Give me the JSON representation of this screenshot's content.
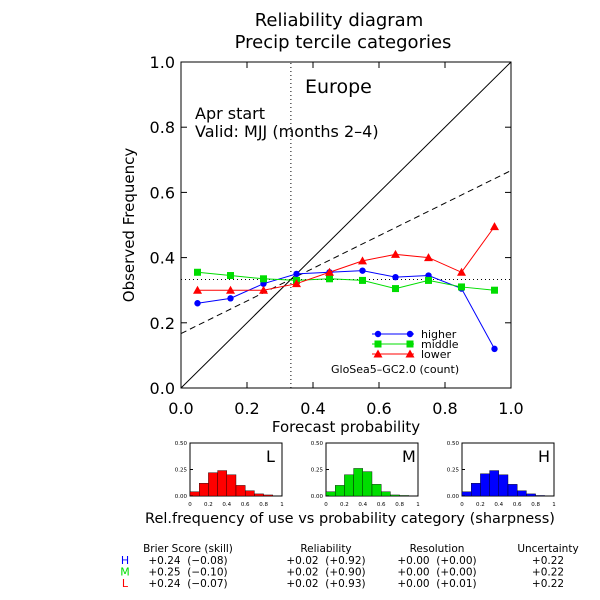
{
  "title": "Reliability diagram",
  "subtitle": "Precip tercile categories",
  "region": "Europe",
  "start": "Apr start",
  "valid": "Valid: MJJ (months 2–4)",
  "model": "GloSea5–GC2.0 (count)",
  "sharpness_caption": "Rel.frequency of use vs probability category (sharpness)",
  "colors": {
    "higher": "#0000ff",
    "middle": "#00dd00",
    "lower": "#ff0000"
  },
  "chart_data": {
    "type": "line",
    "xlabel": "Forecast probability",
    "ylabel": "Observed Frequency",
    "xlim": [
      0,
      1
    ],
    "ylim": [
      0,
      1
    ],
    "xticks": [
      "0.0",
      "0.2",
      "0.4",
      "0.6",
      "0.8",
      "1.0"
    ],
    "yticks": [
      "0.0",
      "0.2",
      "0.4",
      "0.6",
      "0.8",
      "1.0"
    ],
    "climatology": 0.333,
    "no_skill_line": {
      "x": [
        0,
        1
      ],
      "y": [
        0.167,
        0.667
      ]
    },
    "x": [
      0.05,
      0.15,
      0.25,
      0.35,
      0.45,
      0.55,
      0.65,
      0.75,
      0.85,
      0.95
    ],
    "series": [
      {
        "name": "higher",
        "marker": "circle",
        "values": [
          0.26,
          0.275,
          0.32,
          0.35,
          0.355,
          0.36,
          0.34,
          0.345,
          0.305,
          0.12
        ]
      },
      {
        "name": "middle",
        "marker": "square",
        "values": [
          0.355,
          0.345,
          0.335,
          0.33,
          0.335,
          0.33,
          0.305,
          0.33,
          0.31,
          0.3
        ]
      },
      {
        "name": "lower",
        "marker": "triangle",
        "values": [
          0.3,
          0.3,
          0.3,
          0.32,
          0.355,
          0.39,
          0.41,
          0.4,
          0.355,
          0.495
        ]
      }
    ],
    "legend_position": "bottom-right",
    "sharpness": [
      {
        "label": "L",
        "series": "lower",
        "values": [
          0.04,
          0.12,
          0.22,
          0.24,
          0.2,
          0.1,
          0.05,
          0.02,
          0.01,
          0.0
        ]
      },
      {
        "label": "M",
        "series": "middle",
        "values": [
          0.04,
          0.1,
          0.2,
          0.26,
          0.23,
          0.11,
          0.04,
          0.01,
          0.005,
          0.0
        ]
      },
      {
        "label": "H",
        "series": "higher",
        "values": [
          0.04,
          0.12,
          0.21,
          0.24,
          0.2,
          0.11,
          0.05,
          0.02,
          0.005,
          0.0
        ]
      }
    ],
    "sharpness_yticks": [
      "0.00",
      "0.25",
      "0.50"
    ],
    "sharpness_xticks": [
      "0",
      "0.2",
      "0.4",
      "0.6",
      "0.8",
      "1"
    ]
  },
  "scores": {
    "headers": [
      "Brier Score (skill)",
      "Reliability",
      "Resolution",
      "Uncertainty"
    ],
    "rows": [
      {
        "label": "H",
        "series": "higher",
        "cells": [
          "+0.24  (−0.08)",
          "+0.02  (+0.92)",
          "+0.00  (+0.00)",
          "+0.22"
        ]
      },
      {
        "label": "M",
        "series": "middle",
        "cells": [
          "+0.25  (−0.10)",
          "+0.02  (+0.90)",
          "+0.00  (+0.00)",
          "+0.22"
        ]
      },
      {
        "label": "L",
        "series": "lower",
        "cells": [
          "+0.24  (−0.07)",
          "+0.02  (+0.93)",
          "+0.00  (+0.01)",
          "+0.22"
        ]
      }
    ]
  }
}
